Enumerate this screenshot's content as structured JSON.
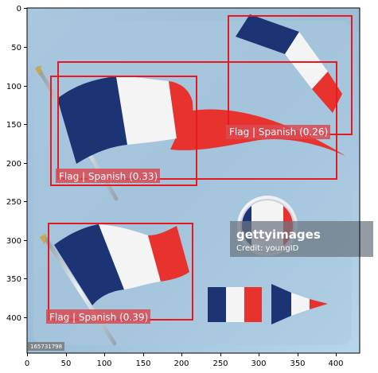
{
  "x_axis": {
    "ticks": [
      "0",
      "50",
      "100",
      "150",
      "200",
      "250",
      "300",
      "350",
      "400"
    ]
  },
  "y_axis": {
    "ticks": [
      "0",
      "50",
      "100",
      "150",
      "200",
      "250",
      "300",
      "350",
      "400"
    ]
  },
  "detections": [
    {
      "label": "Flag | Spanish (0.26)"
    },
    {
      "label": "Flag | Spanish (0.33)"
    },
    {
      "label": "Flag | Spanish (0.39)"
    }
  ],
  "watermark": {
    "brand": "gettyimages",
    "credit": "Credit: youngID",
    "image_id": "165731798"
  },
  "colors": {
    "box": "#e8191e",
    "label_bg": "#d94a52",
    "flag_blue": "#1c3474",
    "flag_red": "#e8322d"
  }
}
